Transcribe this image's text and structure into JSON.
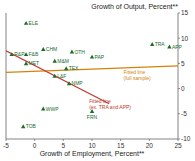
{
  "chart_data": {
    "type": "scatter",
    "title": "Growth of Output, Percent**",
    "x_label": "Growth of Employment, Percent**",
    "xlim": [
      -5,
      25
    ],
    "ylim": [
      -10,
      15
    ],
    "xticks": [
      -5,
      0,
      5,
      10,
      15,
      20,
      25
    ],
    "yticks": [
      -10,
      -5,
      0,
      5,
      10,
      15
    ],
    "grid": false,
    "series": [
      {
        "type": "scatter",
        "marker": "triangle",
        "color": "#1a6b2e",
        "labels": [
          "ELE",
          "R&P",
          "F&B",
          "CHM",
          "OTH",
          "PAP",
          "MET",
          "M&M",
          "TEX",
          "L&F",
          "NMP",
          "WWP",
          "TOB",
          "FRN",
          "TRA",
          "APP"
        ],
        "x": [
          -1.5,
          -4.0,
          -1.5,
          1.5,
          6.5,
          10.0,
          -1.5,
          3.5,
          5.5,
          3.5,
          6.0,
          1.5,
          -2.0,
          10.0,
          20.5,
          23.5
        ],
        "values": [
          13.0,
          6.8,
          6.8,
          7.8,
          7.3,
          6.3,
          5.0,
          5.5,
          4.0,
          2.5,
          1.0,
          -4.0,
          -7.5,
          -4.5,
          8.8,
          8.3
        ]
      },
      {
        "type": "line",
        "color": "#d4820a",
        "x": [
          -5,
          25
        ],
        "values": [
          3.2,
          4.5
        ]
      },
      {
        "type": "line",
        "color": "#c0392b",
        "x": [
          -5,
          13
        ],
        "values": [
          7.5,
          -3.0
        ]
      }
    ],
    "annotations": [
      {
        "text": "Fitted line\n(full sample)",
        "x": 15.5,
        "y": 3.8,
        "color": "#d4820a"
      },
      {
        "text": "Fitted line\n(ex. TRA and APP)",
        "x": 9.5,
        "y": -1.8,
        "color": "#c0392b"
      }
    ]
  }
}
